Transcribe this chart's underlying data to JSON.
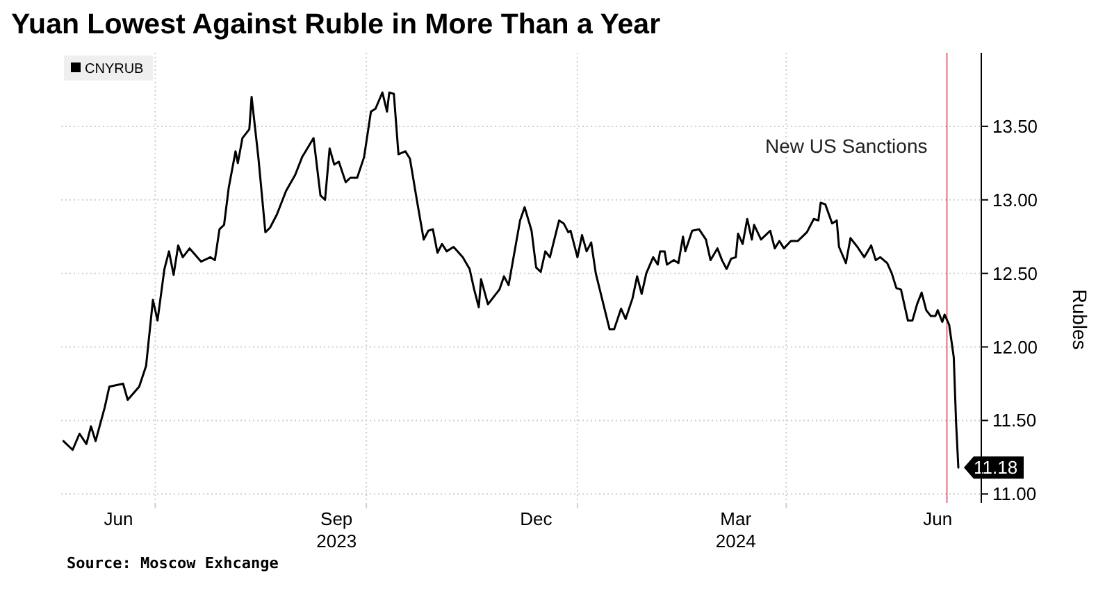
{
  "chart_data": {
    "type": "line",
    "title": "Yuan Lowest Against Ruble in More Than a Year",
    "ylabel": "Rubles",
    "annotations": [
      "Source: Moscow Exhcange"
    ],
    "legend": "top left",
    "grid": true,
    "marker": "none",
    "line_style": "solid",
    "xlim": [
      "2023-05-21",
      "2024-06-25"
    ],
    "xticks": [
      {
        "value": "2023-06-15",
        "label": "Jun"
      },
      {
        "value": "2023-07-01",
        "label": null
      },
      {
        "value": "2023-09-18",
        "label": "Sep\n2023"
      },
      {
        "value": "2023-10-01",
        "label": null
      },
      {
        "value": "2023-12-14",
        "label": "Dec"
      },
      {
        "value": "2024-01-01",
        "label": null
      },
      {
        "value": "2024-03-10",
        "label": "Mar\n2024"
      },
      {
        "value": "2024-04-01",
        "label": null
      },
      {
        "value": "2024-06-06",
        "label": "Jun"
      }
    ],
    "ylim": [
      10.94,
      14.0
    ],
    "yticks": [
      {
        "value": 11,
        "label": "11.00"
      },
      {
        "value": 11.5,
        "label": "11.50"
      },
      {
        "value": 12,
        "label": "12.00"
      },
      {
        "value": 12.5,
        "label": "12.50"
      },
      {
        "value": 13,
        "label": "13.00"
      },
      {
        "value": 13.5,
        "label": "13.50"
      }
    ],
    "ref_lines": [
      {
        "axis": "x",
        "value": "2024-06-10",
        "label": "New US Sanctions",
        "color": "#e07080"
      }
    ],
    "series": [
      {
        "name": "CNYRUB",
        "color": "#000000",
        "x": [
          "2023-05-22",
          "2023-05-26",
          "2023-05-29",
          "2023-06-01",
          "2023-06-03",
          "2023-06-05",
          "2023-06-09",
          "2023-06-11",
          "2023-06-17",
          "2023-06-19",
          "2023-06-24",
          "2023-06-27",
          "2023-06-30",
          "2023-07-02",
          "2023-07-05",
          "2023-07-07",
          "2023-07-09",
          "2023-07-11",
          "2023-07-13",
          "2023-07-16",
          "2023-07-21",
          "2023-07-25",
          "2023-07-27",
          "2023-07-29",
          "2023-07-31",
          "2023-08-02",
          "2023-08-05",
          "2023-08-06",
          "2023-08-08",
          "2023-08-11",
          "2023-08-12",
          "2023-08-15",
          "2023-08-18",
          "2023-08-20",
          "2023-08-23",
          "2023-08-27",
          "2023-08-31",
          "2023-09-03",
          "2023-09-08",
          "2023-09-11",
          "2023-09-13",
          "2023-09-15",
          "2023-09-17",
          "2023-09-19",
          "2023-09-22",
          "2023-09-24",
          "2023-09-27",
          "2023-09-30",
          "2023-10-03",
          "2023-10-05",
          "2023-10-08",
          "2023-10-10",
          "2023-10-11",
          "2023-10-13",
          "2023-10-15",
          "2023-10-18",
          "2023-10-20",
          "2023-10-23",
          "2023-10-26",
          "2023-10-28",
          "2023-10-30",
          "2023-11-01",
          "2023-11-03",
          "2023-11-05",
          "2023-11-08",
          "2023-11-12",
          "2023-11-15",
          "2023-11-17",
          "2023-11-19",
          "2023-11-20",
          "2023-11-23",
          "2023-11-28",
          "2023-11-30",
          "2023-12-02",
          "2023-12-07",
          "2023-12-09",
          "2023-12-12",
          "2023-12-14",
          "2023-12-16",
          "2023-12-18",
          "2023-12-20",
          "2023-12-24",
          "2023-12-26",
          "2023-12-28",
          "2023-12-29",
          "2024-01-01",
          "2024-01-03",
          "2024-01-05",
          "2024-01-07",
          "2024-01-09",
          "2024-01-12",
          "2024-01-15",
          "2024-01-17",
          "2024-01-20",
          "2024-01-22",
          "2024-01-25",
          "2024-01-27",
          "2024-01-29",
          "2024-01-31",
          "2024-02-03",
          "2024-02-05",
          "2024-02-06",
          "2024-02-08",
          "2024-02-09",
          "2024-02-12",
          "2024-02-14",
          "2024-02-16",
          "2024-02-17",
          "2024-02-20",
          "2024-02-23",
          "2024-02-26",
          "2024-02-28",
          "2024-03-02",
          "2024-03-04",
          "2024-03-06",
          "2024-03-08",
          "2024-03-10",
          "2024-03-11",
          "2024-03-13",
          "2024-03-15",
          "2024-03-17",
          "2024-03-18",
          "2024-03-21",
          "2024-03-25",
          "2024-03-27",
          "2024-03-29",
          "2024-03-31",
          "2024-04-03",
          "2024-04-06",
          "2024-04-10",
          "2024-04-13",
          "2024-04-15",
          "2024-04-16",
          "2024-04-18",
          "2024-04-21",
          "2024-04-23",
          "2024-04-24",
          "2024-04-27",
          "2024-04-29",
          "2024-05-02",
          "2024-05-05",
          "2024-05-08",
          "2024-05-10",
          "2024-05-12",
          "2024-05-15",
          "2024-05-17",
          "2024-05-19",
          "2024-05-21",
          "2024-05-24",
          "2024-05-26",
          "2024-05-28",
          "2024-05-30",
          "2024-06-01",
          "2024-06-03",
          "2024-06-05",
          "2024-06-06",
          "2024-06-08",
          "2024-06-09",
          "2024-06-11",
          "2024-06-13",
          "2024-06-14",
          "2024-06-15"
        ],
        "values": [
          11.36,
          11.3,
          11.41,
          11.34,
          11.46,
          11.36,
          11.59,
          11.73,
          11.75,
          11.64,
          11.73,
          11.87,
          12.32,
          12.18,
          12.53,
          12.65,
          12.49,
          12.69,
          12.61,
          12.67,
          12.58,
          12.61,
          12.59,
          12.8,
          12.83,
          13.08,
          13.33,
          13.25,
          13.42,
          13.48,
          13.7,
          13.28,
          12.78,
          12.81,
          12.9,
          13.06,
          13.17,
          13.29,
          13.42,
          13.03,
          13.0,
          13.35,
          13.24,
          13.26,
          13.12,
          13.15,
          13.15,
          13.29,
          13.6,
          13.62,
          13.73,
          13.6,
          13.73,
          13.72,
          13.31,
          13.33,
          13.28,
          13.0,
          12.73,
          12.79,
          12.8,
          12.64,
          12.7,
          12.65,
          12.68,
          12.61,
          12.53,
          12.39,
          12.27,
          12.46,
          12.29,
          12.39,
          12.48,
          12.42,
          12.86,
          12.95,
          12.79,
          12.54,
          12.51,
          12.65,
          12.61,
          12.86,
          12.84,
          12.78,
          12.79,
          12.61,
          12.76,
          12.65,
          12.71,
          12.5,
          12.31,
          12.12,
          12.12,
          12.26,
          12.19,
          12.33,
          12.48,
          12.36,
          12.5,
          12.61,
          12.56,
          12.65,
          12.65,
          12.56,
          12.59,
          12.57,
          12.75,
          12.65,
          12.79,
          12.8,
          12.73,
          12.59,
          12.67,
          12.59,
          12.53,
          12.6,
          12.61,
          12.77,
          12.7,
          12.87,
          12.73,
          12.83,
          12.73,
          12.79,
          12.67,
          12.72,
          12.67,
          12.72,
          12.72,
          12.78,
          12.87,
          12.86,
          12.98,
          12.97,
          12.84,
          12.86,
          12.68,
          12.57,
          12.74,
          12.68,
          12.61,
          12.69,
          12.59,
          12.61,
          12.57,
          12.5,
          12.4,
          12.39,
          12.18,
          12.18,
          12.29,
          12.37,
          12.25,
          12.21,
          12.21,
          12.25,
          12.17,
          12.22,
          12.15,
          11.93,
          11.49,
          11.18
        ],
        "value_labels": [
          null,
          null,
          null,
          null,
          null,
          null,
          null,
          null,
          null,
          null,
          null,
          null,
          null,
          null,
          null,
          null,
          null,
          null,
          null,
          null,
          null,
          null,
          null,
          null,
          null,
          null,
          null,
          null,
          null,
          null,
          null,
          null,
          null,
          null,
          null,
          null,
          null,
          null,
          null,
          null,
          null,
          null,
          null,
          null,
          null,
          null,
          null,
          null,
          null,
          null,
          null,
          null,
          null,
          null,
          null,
          null,
          null,
          null,
          null,
          null,
          null,
          null,
          null,
          null,
          null,
          null,
          null,
          null,
          null,
          null,
          null,
          null,
          null,
          null,
          null,
          null,
          null,
          null,
          null,
          null,
          null,
          null,
          null,
          null,
          null,
          null,
          null,
          null,
          null,
          null,
          null,
          null,
          null,
          null,
          null,
          null,
          null,
          null,
          null,
          null,
          null,
          null,
          null,
          null,
          null,
          null,
          null,
          null,
          null,
          null,
          null,
          null,
          null,
          null,
          null,
          null,
          null,
          null,
          null,
          null,
          null,
          null,
          null,
          null,
          null,
          null,
          null,
          null,
          null,
          null,
          null,
          null,
          null,
          null,
          null,
          null,
          null,
          null,
          null,
          null,
          null,
          null,
          null,
          null,
          null,
          null,
          null,
          null,
          null,
          null,
          null,
          null,
          null,
          null,
          null,
          null,
          null,
          null,
          null,
          null,
          null,
          "11.18"
        ]
      }
    ]
  }
}
